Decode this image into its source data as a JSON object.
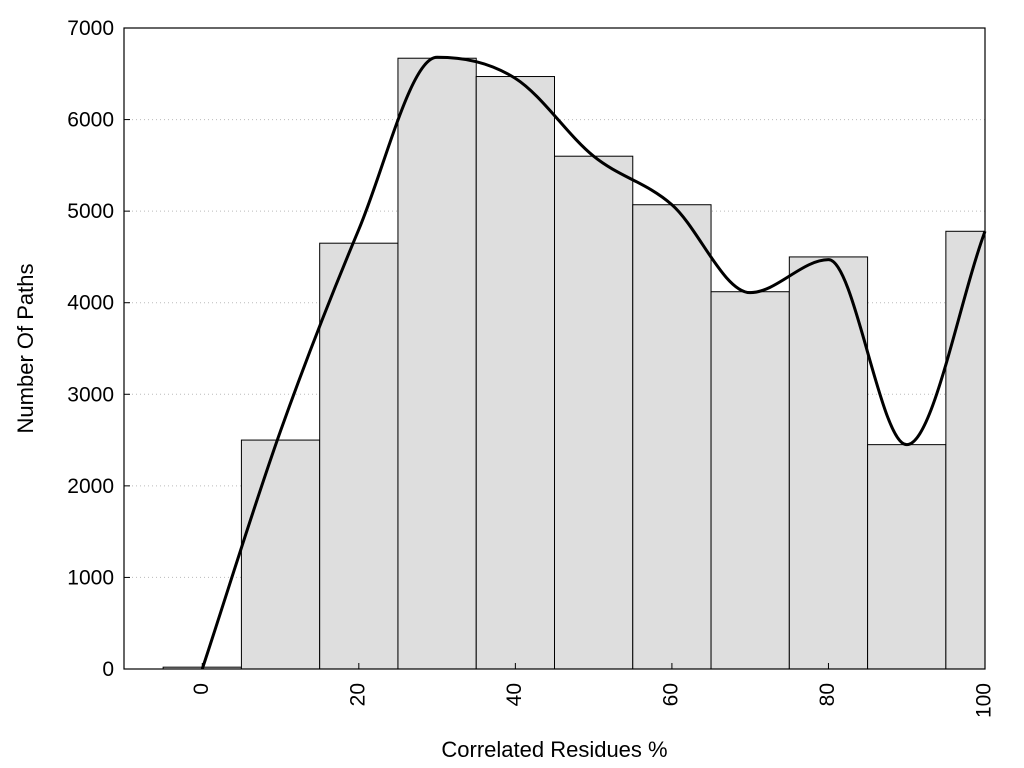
{
  "chart_data": {
    "type": "bar",
    "xlabel": "Correlated Residues %",
    "ylabel": "Number Of Paths",
    "x": [
      0,
      10,
      20,
      30,
      40,
      50,
      60,
      70,
      80,
      90,
      100
    ],
    "values": [
      20,
      2500,
      4650,
      6670,
      6470,
      5600,
      5070,
      4120,
      4500,
      2450,
      4780
    ],
    "bin_width": 10,
    "xlim": [
      -10,
      100
    ],
    "ylim": [
      0,
      7000
    ],
    "x_ticks": [
      0,
      20,
      40,
      60,
      80,
      100
    ],
    "y_ticks": [
      0,
      1000,
      2000,
      3000,
      4000,
      5000,
      6000,
      7000
    ],
    "y_grid": true,
    "bar_color": "#dedede",
    "curve": {
      "type": "line",
      "smooth": true,
      "color": "#000000",
      "x": [
        0,
        10,
        20,
        30,
        40,
        50,
        60,
        70,
        80,
        90,
        100
      ],
      "y": [
        0,
        2600,
        4800,
        6680,
        6450,
        5600,
        5070,
        4110,
        4470,
        2450,
        4780
      ]
    }
  }
}
